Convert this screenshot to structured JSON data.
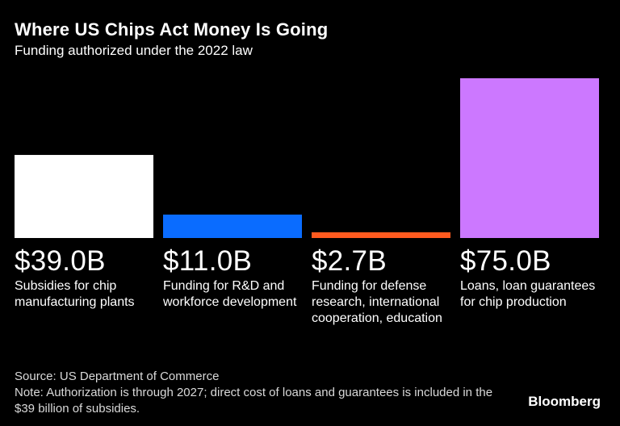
{
  "chart_data": {
    "type": "bar",
    "title": "Where US Chips Act Money Is Going",
    "subtitle": "Funding authorized under the 2022 law",
    "categories": [
      "Subsidies for chip manufacturing plants",
      "Funding for R&D and workforce development",
      "Funding for defense research, international cooperation, education",
      "Loans, loan guarantees for chip production"
    ],
    "values": [
      39.0,
      11.0,
      2.7,
      75.0
    ],
    "value_labels": [
      "$39.0B",
      "$11.0B",
      "$2.7B",
      "$75.0B"
    ],
    "colors": [
      "#ffffff",
      "#0a6cff",
      "#ff5a1f",
      "#cc78ff"
    ],
    "unit": "billion USD",
    "ylim": [
      0,
      75
    ],
    "grid": false,
    "source": "Source: US Department of Commerce",
    "note": "Note: Authorization is through 2027; direct cost of loans and guarantees is included in the $39 billion of subsidies."
  },
  "brand": "Bloomberg"
}
